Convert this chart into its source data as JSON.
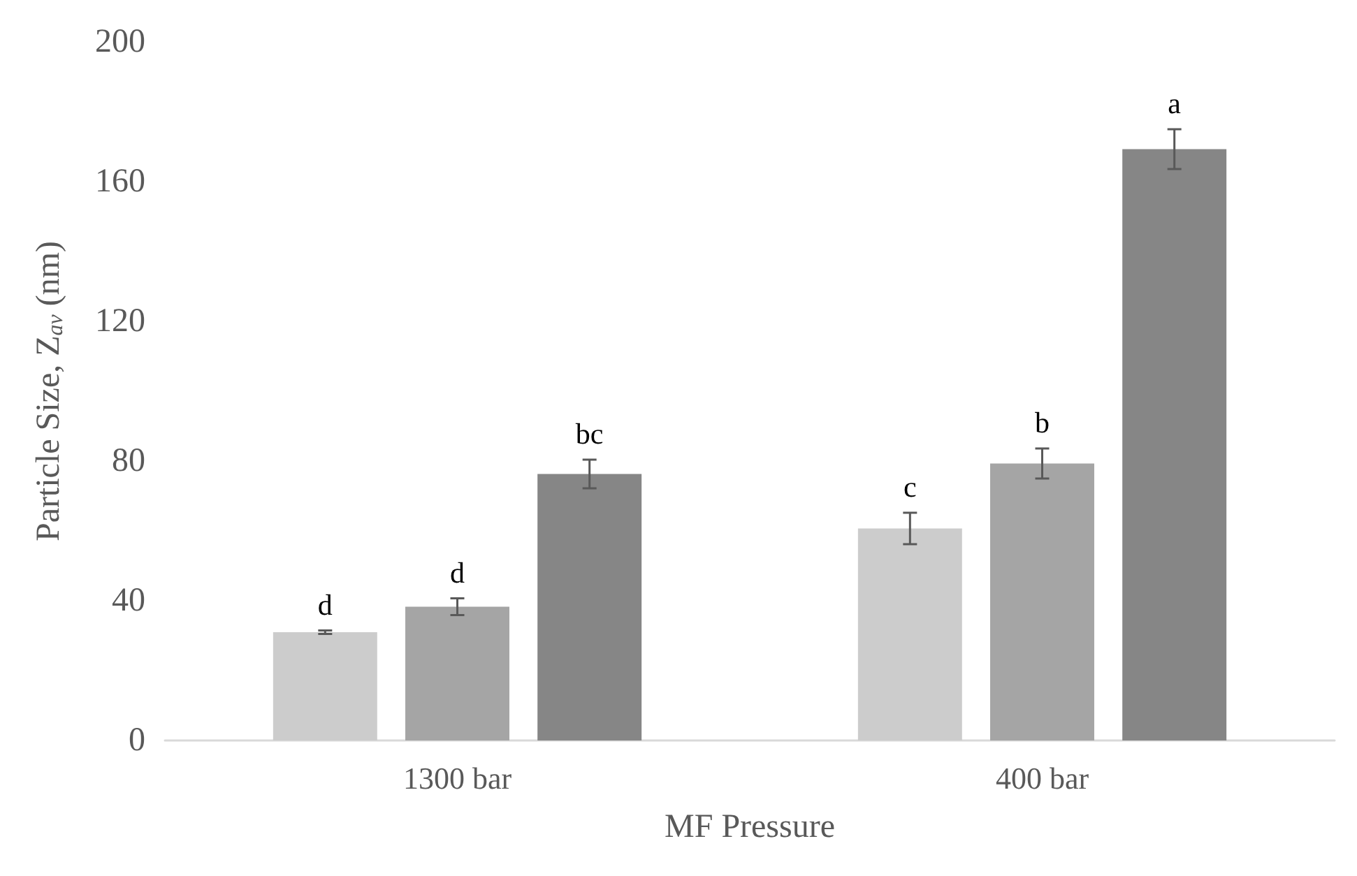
{
  "chart_data": {
    "type": "bar",
    "xlabel": "MF Pressure",
    "ylabel": "Particle Size, Z$_{av}$ (nm)",
    "categories": [
      "1300 bar",
      "400 bar"
    ],
    "series": [
      {
        "color": "#cccccc",
        "values": [
          31.0,
          60.7
        ],
        "errors": [
          0.5,
          4.5
        ],
        "value_labels": [
          "d",
          "c"
        ]
      },
      {
        "color": "#a5a5a5",
        "values": [
          38.3,
          79.3
        ],
        "errors": [
          2.4,
          4.3
        ],
        "value_labels": [
          "d",
          "b"
        ]
      },
      {
        "color": "#868686",
        "values": [
          76.3,
          169.3
        ],
        "errors": [
          4.1,
          5.7
        ],
        "value_labels": [
          "bc",
          "a"
        ]
      }
    ],
    "ylim": [
      0,
      200
    ],
    "yticks": [
      0,
      40,
      80,
      120,
      160,
      200
    ],
    "grid": false
  }
}
